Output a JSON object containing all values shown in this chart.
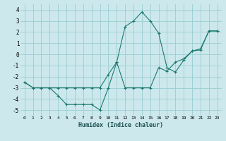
{
  "xlabel": "Humidex (Indice chaleur)",
  "bg_color": "#cce8ec",
  "grid_color": "#99cdd4",
  "line_color": "#1a7a6e",
  "xlim": [
    -0.5,
    23.5
  ],
  "ylim": [
    -5.5,
    4.5
  ],
  "xticks": [
    0,
    1,
    2,
    3,
    4,
    5,
    6,
    7,
    8,
    9,
    10,
    11,
    12,
    13,
    14,
    15,
    16,
    17,
    18,
    19,
    20,
    21,
    22,
    23
  ],
  "yticks": [
    -5,
    -4,
    -3,
    -2,
    -1,
    0,
    1,
    2,
    3,
    4
  ],
  "line1_x": [
    0,
    1,
    2,
    3,
    4,
    5,
    6,
    7,
    8,
    9,
    10,
    11,
    12,
    13,
    14,
    15,
    16,
    17,
    18,
    19,
    20,
    21,
    22,
    23
  ],
  "line1_y": [
    -2.5,
    -3.0,
    -3.0,
    -3.0,
    -3.7,
    -4.5,
    -4.5,
    -4.5,
    -4.5,
    -5.0,
    -3.0,
    -0.7,
    -3.0,
    -3.0,
    -3.0,
    -3.0,
    -1.2,
    -1.5,
    -0.7,
    -0.4,
    0.3,
    0.5,
    2.1,
    2.1
  ],
  "line2_x": [
    0,
    1,
    2,
    3,
    4,
    5,
    6,
    7,
    8,
    9,
    10,
    11,
    12,
    13,
    14,
    15,
    16,
    17,
    18,
    19,
    20,
    21,
    22,
    23
  ],
  "line2_y": [
    -2.5,
    -3.0,
    -3.0,
    -3.0,
    -3.0,
    -3.0,
    -3.0,
    -3.0,
    -3.0,
    -3.0,
    -1.8,
    -0.7,
    2.5,
    3.0,
    3.8,
    3.0,
    1.9,
    -1.2,
    -1.6,
    -0.5,
    0.3,
    0.4,
    2.1,
    2.1
  ]
}
